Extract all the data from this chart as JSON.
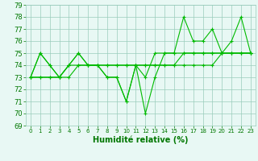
{
  "x_values": [
    0,
    1,
    2,
    3,
    4,
    5,
    6,
    7,
    8,
    9,
    10,
    11,
    12,
    13,
    14,
    15,
    16,
    17,
    18,
    19,
    20,
    21,
    22,
    23
  ],
  "series": [
    [
      73,
      75,
      74,
      73,
      74,
      75,
      74,
      74,
      73,
      73,
      71,
      74,
      70,
      73,
      75,
      75,
      78,
      76,
      76,
      77,
      75,
      76,
      78,
      75
    ],
    [
      73,
      75,
      74,
      73,
      74,
      75,
      74,
      74,
      73,
      73,
      71,
      74,
      73,
      75,
      75,
      75,
      75,
      75,
      75,
      75,
      75,
      75,
      75,
      75
    ],
    [
      73,
      73,
      73,
      73,
      74,
      74,
      74,
      74,
      74,
      74,
      74,
      74,
      74,
      74,
      74,
      74,
      74,
      74,
      74,
      74,
      75,
      75,
      75,
      75
    ],
    [
      73,
      73,
      73,
      73,
      73,
      74,
      74,
      74,
      74,
      74,
      74,
      74,
      74,
      74,
      74,
      74,
      75,
      75,
      75,
      75,
      75,
      75,
      75,
      75
    ]
  ],
  "line_color": "#00bb00",
  "marker": "+",
  "marker_size": 3,
  "linewidth": 0.8,
  "ylim": [
    69,
    79
  ],
  "yticks": [
    69,
    70,
    71,
    72,
    73,
    74,
    75,
    76,
    77,
    78,
    79
  ],
  "xticks": [
    0,
    1,
    2,
    3,
    4,
    5,
    6,
    7,
    8,
    9,
    10,
    11,
    12,
    13,
    14,
    15,
    16,
    17,
    18,
    19,
    20,
    21,
    22,
    23
  ],
  "xlabel": "Humidité relative (%)",
  "xlabel_color": "#007700",
  "xlabel_fontsize": 7,
  "bg_color": "#e8f8f4",
  "grid_color": "#99ccbb",
  "ytick_fontsize": 6,
  "xtick_fontsize": 5
}
